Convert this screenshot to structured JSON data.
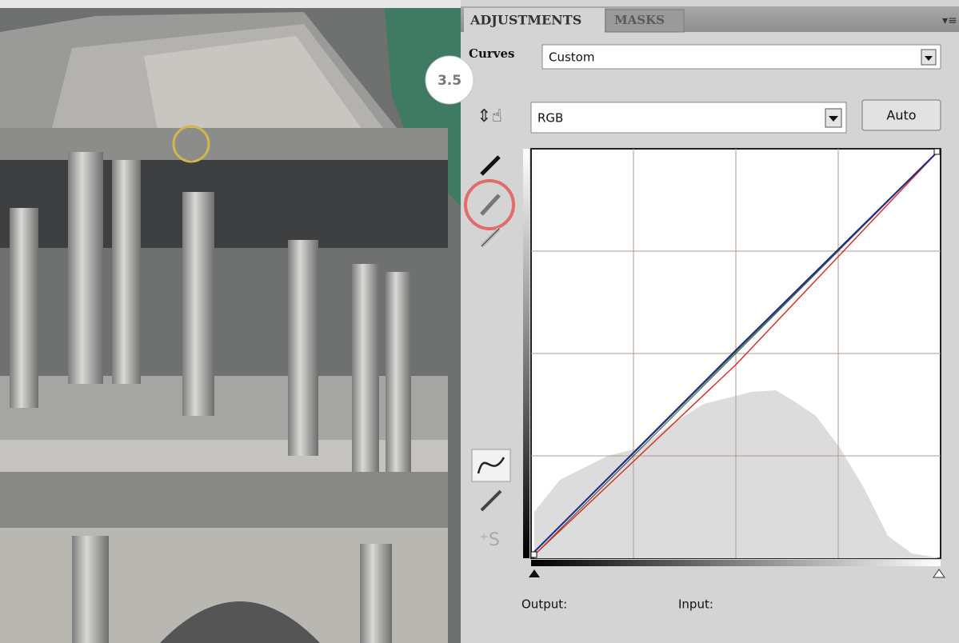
{
  "tabs": [
    "ADJUSTMENTS",
    "MASKS"
  ],
  "preset_label": "Curves",
  "preset": "Custom",
  "step_badge": "3.5",
  "channel": "RGB",
  "auto_button": "Auto",
  "output_label": "Output:",
  "input_label": "Input:"
}
